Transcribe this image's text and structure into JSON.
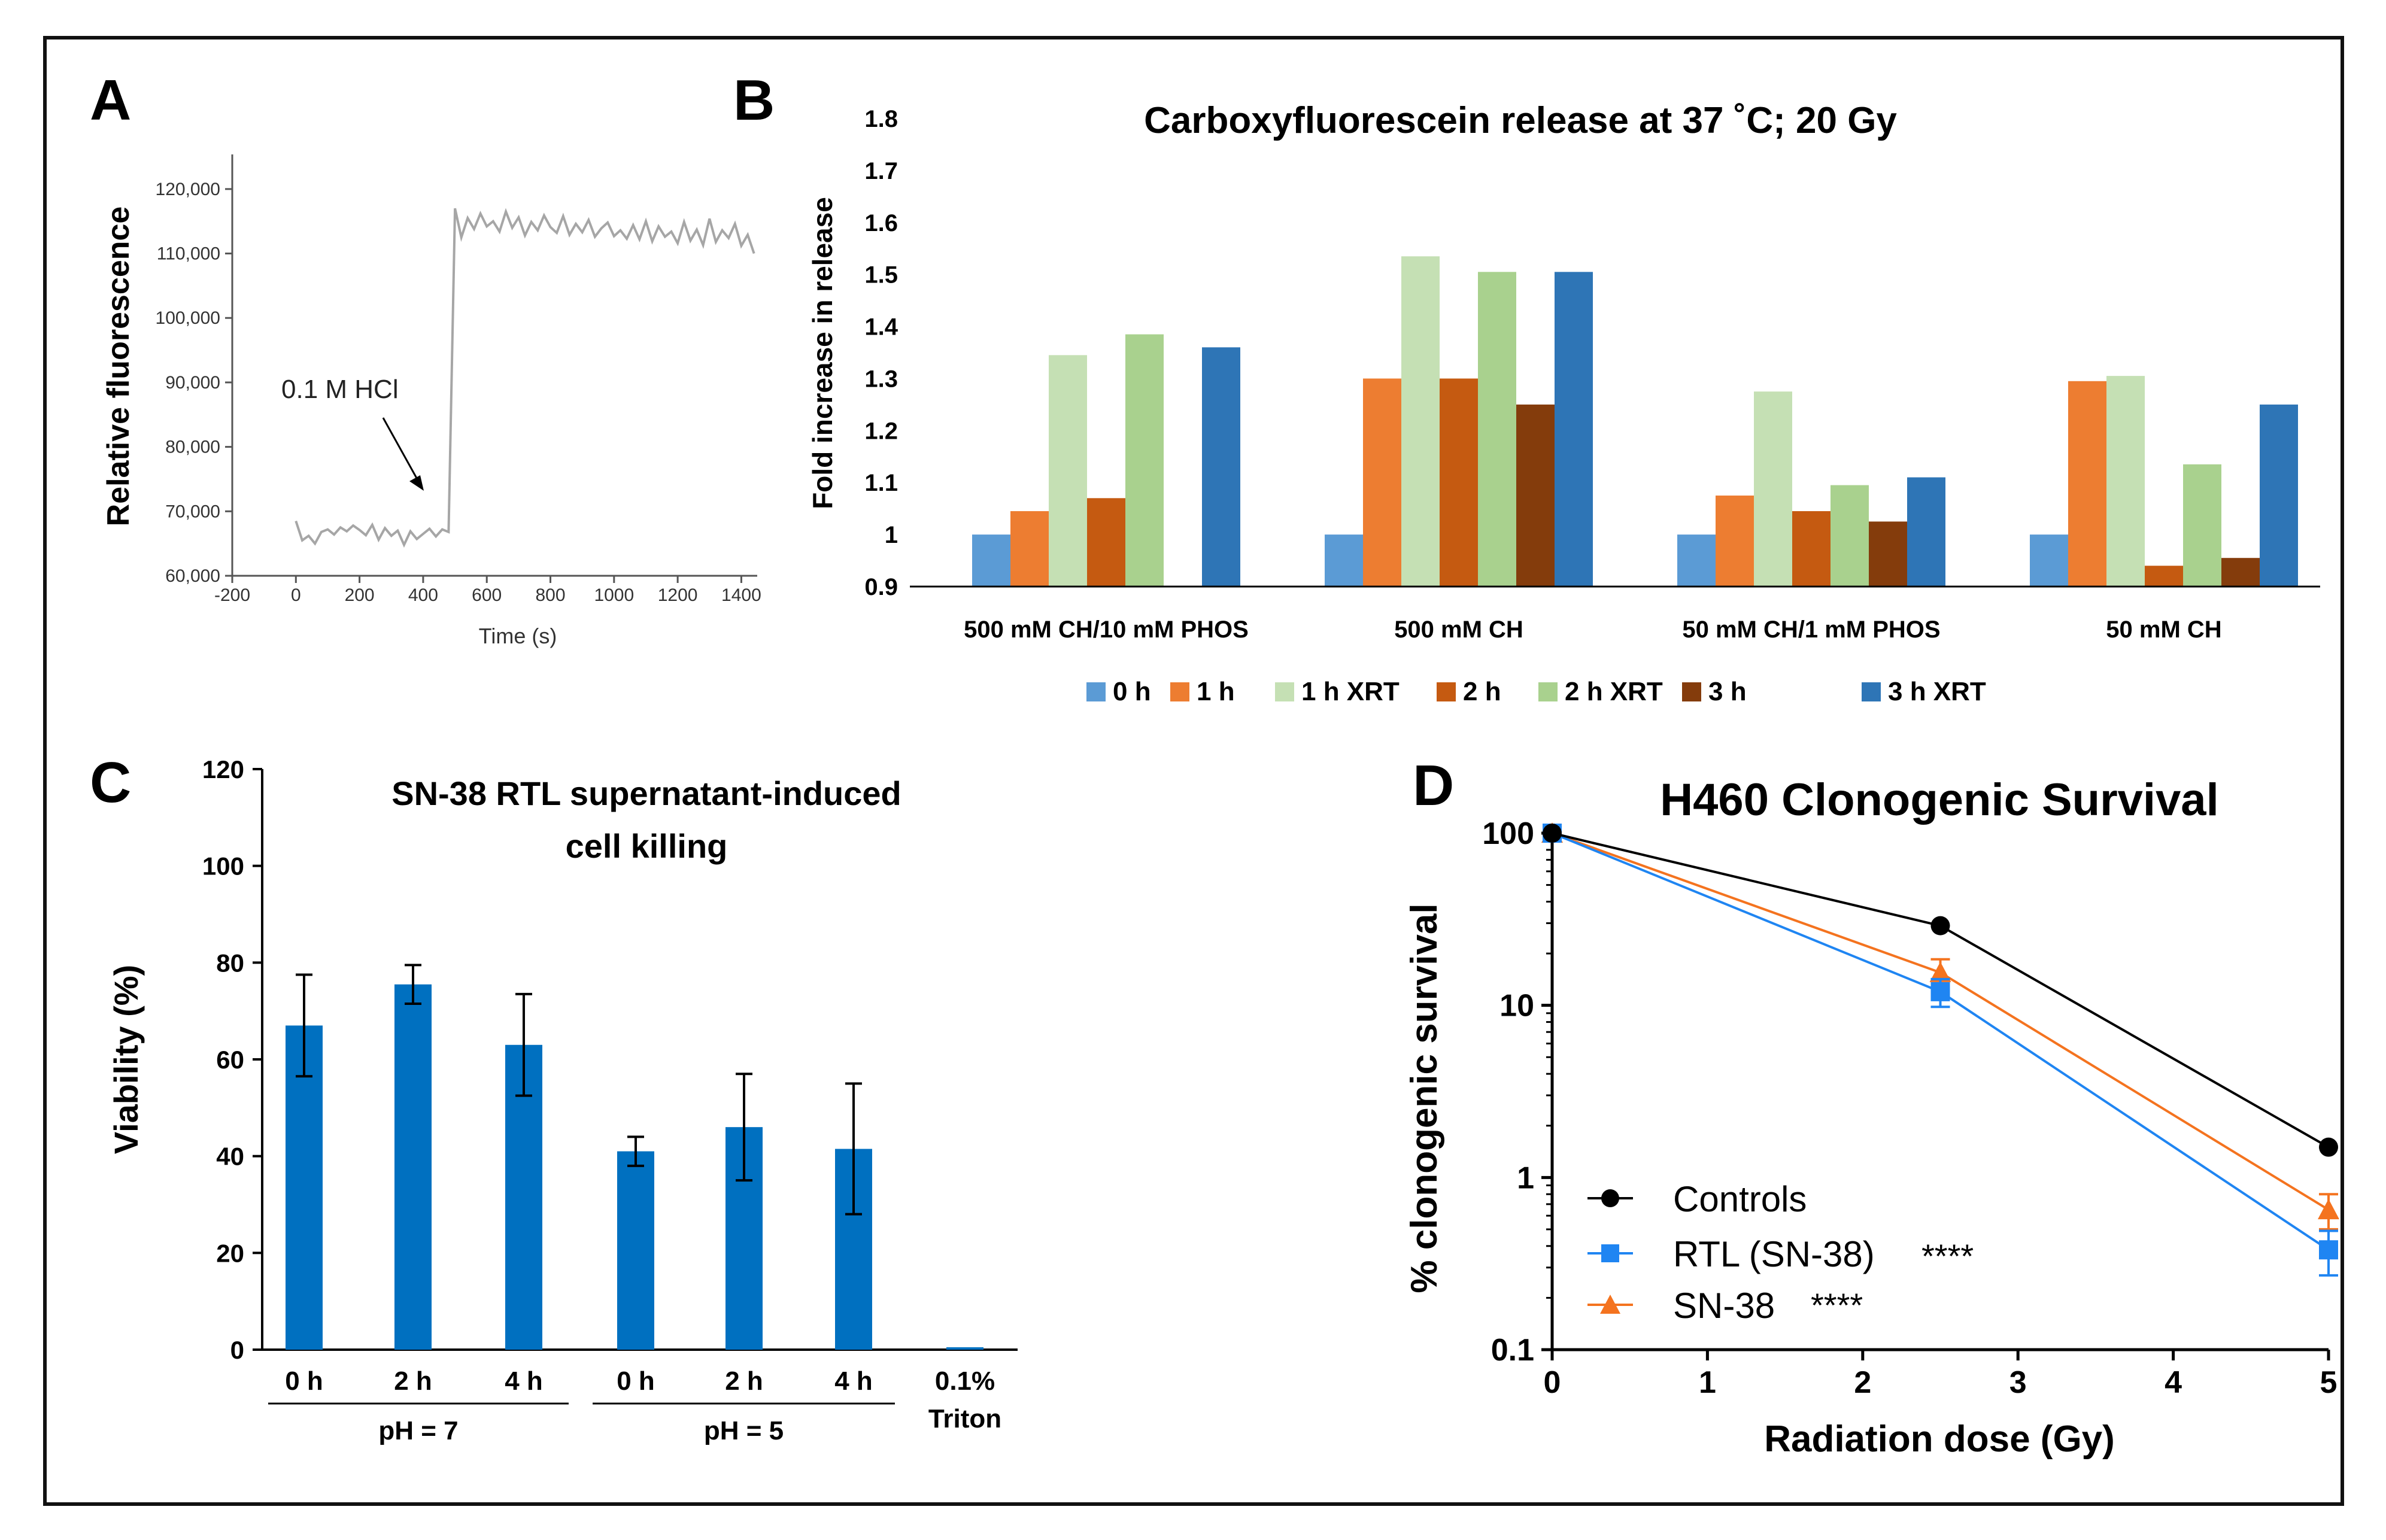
{
  "chart_data": [
    {
      "panel": "A",
      "type": "line",
      "title": "",
      "xlabel": "Time (s)",
      "ylabel": "Relative fluorescence",
      "xlim": [
        -200,
        1450
      ],
      "ylim": [
        60000,
        125000
      ],
      "x_ticks": [
        -200,
        0,
        200,
        400,
        600,
        800,
        1000,
        1200,
        1400
      ],
      "y_ticks": [
        60000,
        70000,
        80000,
        90000,
        100000,
        110000,
        120000
      ],
      "y_tick_labels": [
        "60,000",
        "70,000",
        "80,000",
        "90,000",
        "100,000",
        "110,000",
        "120,000"
      ],
      "annotation": "0.1 M HCl",
      "series": [
        {
          "name": "fluorescence",
          "color": "#a6a6a6",
          "x": [
            0,
            20,
            40,
            60,
            80,
            100,
            120,
            140,
            160,
            180,
            200,
            220,
            240,
            260,
            280,
            300,
            320,
            340,
            360,
            380,
            400,
            420,
            440,
            460,
            480,
            500,
            520,
            540,
            560,
            580,
            600,
            620,
            640,
            660,
            680,
            700,
            720,
            740,
            760,
            780,
            800,
            820,
            840,
            860,
            880,
            900,
            920,
            940,
            960,
            980,
            1000,
            1020,
            1040,
            1060,
            1080,
            1100,
            1120,
            1140,
            1160,
            1180,
            1200,
            1220,
            1240,
            1260,
            1280,
            1300,
            1320,
            1340,
            1360,
            1380,
            1400,
            1420,
            1440
          ],
          "values": [
            68500,
            65500,
            66200,
            65000,
            66800,
            67200,
            66400,
            67500,
            66900,
            67800,
            67100,
            66300,
            67900,
            65600,
            67400,
            66200,
            67000,
            64800,
            66900,
            65700,
            66500,
            67300,
            66100,
            67200,
            66800,
            117000,
            112500,
            115500,
            113800,
            116200,
            114200,
            115000,
            113400,
            116500,
            114000,
            115600,
            112800,
            114900,
            113600,
            115900,
            114100,
            113200,
            115800,
            112900,
            114600,
            113300,
            115200,
            112600,
            113900,
            114800,
            112700,
            113600,
            112300,
            114400,
            112200,
            115000,
            111900,
            114200,
            112600,
            113400,
            111600,
            114900,
            112000,
            113700,
            111300,
            115400,
            111800,
            113600,
            112400,
            114600,
            111200,
            112900,
            110000
          ]
        }
      ]
    },
    {
      "panel": "B",
      "type": "bar",
      "title": "Carboxyfluorescein release at 37 ˚C; 20 Gy",
      "xlabel": "",
      "ylabel": "Fold increase in release",
      "ylim": [
        0.9,
        1.8
      ],
      "y_ticks": [
        "0.9",
        "1",
        "1.1",
        "1.2",
        "1.3",
        "1.4",
        "1.5",
        "1.6",
        "1.7",
        "1.8"
      ],
      "legend_position": "bottom",
      "categories": [
        "500 mM CH/10 mM PHOS",
        "500 mM CH",
        "50 mM CH/1 mM PHOS",
        "50 mM CH"
      ],
      "series": [
        {
          "name": "0 h",
          "color": "#5b9bd5",
          "values": [
            1.0,
            1.0,
            1.0,
            1.0
          ]
        },
        {
          "name": "1 h",
          "color": "#ed7d31",
          "values": [
            1.045,
            1.3,
            1.075,
            1.295
          ]
        },
        {
          "name": "1 h XRT",
          "color": "#c5e0b4",
          "values": [
            1.345,
            1.535,
            1.275,
            1.305
          ]
        },
        {
          "name": "2 h",
          "color": "#c55a11",
          "values": [
            1.07,
            1.3,
            1.045,
            0.94
          ]
        },
        {
          "name": "2 h XRT",
          "color": "#a9d18e",
          "values": [
            1.385,
            1.505,
            1.095,
            1.135
          ]
        },
        {
          "name": "3 h",
          "color": "#843c0c",
          "values": [
            null,
            1.25,
            1.025,
            0.955
          ]
        },
        {
          "name": "3 h XRT",
          "color": "#2e75b6",
          "values": [
            1.36,
            1.505,
            1.11,
            1.25
          ]
        }
      ]
    },
    {
      "panel": "C",
      "type": "bar",
      "title": "SN-38 RTL supernatant-induced cell killing",
      "title_lines": [
        "SN-38 RTL supernatant-induced",
        "cell killing"
      ],
      "xlabel": "",
      "ylabel": "Viability (%)",
      "ylim": [
        0,
        120
      ],
      "y_ticks": [
        0,
        20,
        40,
        60,
        80,
        100,
        120
      ],
      "categories": [
        "0 h",
        "2 h",
        "4 h",
        "0 h",
        "2 h",
        "4 h",
        "0.1%"
      ],
      "category_sublabel": "Triton",
      "groups": [
        {
          "label": "pH = 7",
          "members": [
            0,
            1,
            2
          ]
        },
        {
          "label": "pH = 5",
          "members": [
            3,
            4,
            5
          ]
        }
      ],
      "series": [
        {
          "name": "Viability",
          "color": "#0070c0",
          "values": [
            67,
            75.5,
            63,
            41,
            46,
            41.5,
            0.5
          ],
          "errors": [
            10.5,
            4,
            10.5,
            3,
            11,
            13.5,
            0
          ]
        }
      ]
    },
    {
      "panel": "D",
      "type": "line",
      "title": "H460 Clonogenic Survival",
      "xlabel": "Radiation dose (Gy)",
      "ylabel": "% clonogenic survival",
      "xlim": [
        0,
        5
      ],
      "ylim": [
        0.1,
        100
      ],
      "yscale": "log",
      "x_ticks": [
        0,
        1,
        2,
        3,
        4,
        5
      ],
      "y_ticks": [
        "0.1",
        "1",
        "10",
        "100"
      ],
      "legend_position": "bottom-left",
      "x": [
        0,
        2.5,
        5
      ],
      "series": [
        {
          "name": "Controls",
          "marker": "circle",
          "color": "#000000",
          "values": [
            100,
            29,
            1.5
          ],
          "errors": [
            0,
            0,
            0
          ],
          "significance": ""
        },
        {
          "name": "RTL (SN-38)",
          "marker": "square",
          "color": "#1f85f2",
          "values": [
            100,
            12,
            0.38
          ],
          "errors": [
            0,
            2.2,
            0.11
          ],
          "significance": "****"
        },
        {
          "name": "SN-38",
          "marker": "triangle",
          "color": "#f4731f",
          "values": [
            100,
            15.5,
            0.65
          ],
          "errors": [
            0,
            3,
            0.15
          ],
          "significance": "****"
        }
      ]
    }
  ]
}
